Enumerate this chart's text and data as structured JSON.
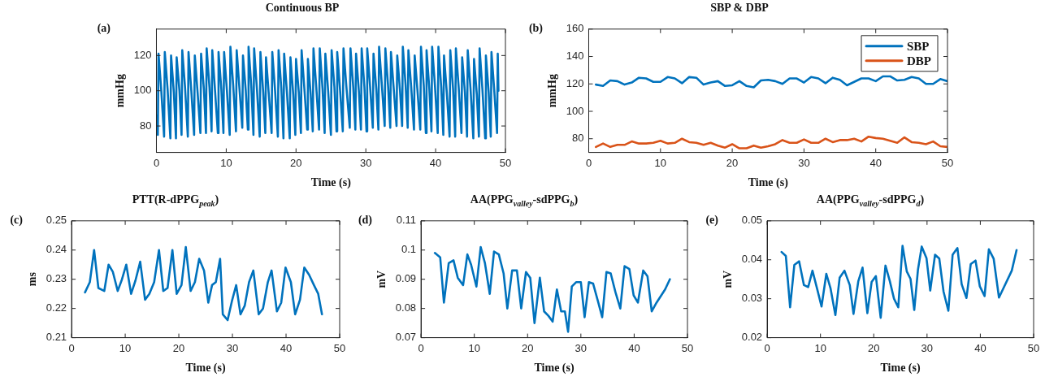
{
  "chart_data": [
    {
      "type": "line",
      "title": "Continuous BP",
      "xlabel": "Time (s)",
      "ylabel": "mmHg",
      "annotations": [
        "(a)"
      ],
      "xlim": [
        0,
        50
      ],
      "xticks": [
        0,
        10,
        20,
        30,
        40,
        50
      ],
      "ylim": [
        65,
        135
      ],
      "yticks": [
        80,
        100,
        120
      ],
      "x": [
        0,
        0.2,
        0.3,
        0.7,
        1.1,
        1.2,
        1.6,
        2.0,
        2.1,
        2.5,
        2.8,
        2.9,
        3.3,
        3.6,
        3.7,
        4.1,
        4.5,
        4.6,
        5.0,
        5.4,
        5.5,
        5.9,
        6.3,
        6.4,
        6.8,
        7.1,
        7.2,
        7.6,
        7.9,
        8.0,
        8.4,
        8.8,
        8.9,
        9.3,
        9.6,
        9.7,
        10.1,
        10.5,
        10.6,
        11.0,
        11.4,
        11.5,
        11.9,
        12.3,
        12.4,
        12.8,
        13.1,
        13.2,
        13.6,
        13.9,
        14.0,
        14.4,
        14.8,
        14.9,
        15.3,
        15.6,
        15.7,
        16.1,
        16.5,
        16.6,
        17.0,
        17.4,
        17.5,
        17.9,
        18.2,
        18.3,
        18.7,
        19.1,
        19.2,
        19.6,
        19.9,
        20.0,
        20.4,
        20.7,
        20.8,
        21.2,
        21.6,
        21.7,
        22.1,
        22.4,
        22.5,
        22.9,
        23.3,
        23.4,
        23.8,
        24.1,
        24.2,
        24.6,
        25.0,
        25.1,
        25.5,
        25.8,
        25.9,
        26.3,
        26.7,
        26.8,
        27.2,
        27.7,
        27.8,
        28.2,
        28.5,
        28.6,
        29.0,
        29.3,
        29.4,
        29.8,
        30.1,
        30.2,
        30.6,
        31.0,
        31.1,
        31.5,
        31.8,
        31.9,
        32.3,
        32.7,
        32.8,
        33.2,
        33.5,
        33.6,
        34.0,
        34.4,
        34.5,
        34.9,
        35.2,
        35.3,
        35.7,
        36.0,
        36.1,
        36.5,
        36.9,
        37.0,
        37.4,
        37.8,
        37.9,
        38.3,
        38.6,
        38.7,
        39.1,
        39.4,
        39.5,
        39.9,
        40.3,
        40.4,
        40.8,
        41.1,
        41.2,
        41.6,
        42.0,
        42.1,
        42.5,
        42.8,
        42.9,
        43.3,
        43.7,
        43.8,
        44.2,
        44.5,
        44.6,
        45.0,
        45.4,
        45.5,
        45.9,
        46.2,
        46.3,
        46.7,
        47.1,
        47.2,
        47.6,
        47.9,
        48.0,
        48.4,
        48.8,
        48.9,
        49.0
      ],
      "series": [
        {
          "color": "#0072bd",
          "values": [
            86,
            75,
            121,
            100,
            74,
            122,
            101,
            73,
            120,
            99,
            73,
            119,
            100,
            75,
            123,
            102,
            74,
            122,
            100,
            75,
            120,
            99,
            76,
            121,
            101,
            76,
            124,
            102,
            77,
            123,
            100,
            76,
            122,
            101,
            76,
            122,
            100,
            75,
            125,
            103,
            77,
            123,
            101,
            79,
            120,
            100,
            78,
            125,
            102,
            75,
            124,
            101,
            74,
            122,
            99,
            76,
            119,
            98,
            76,
            122,
            100,
            74,
            123,
            101,
            73,
            121,
            99,
            73,
            119,
            98,
            75,
            118,
            99,
            76,
            123,
            101,
            78,
            118,
            98,
            77,
            124,
            102,
            78,
            124,
            101,
            76,
            121,
            100,
            75,
            123,
            102,
            77,
            122,
            101,
            77,
            124,
            103,
            79,
            124,
            102,
            78,
            121,
            100,
            78,
            124,
            102,
            77,
            124,
            103,
            79,
            121,
            101,
            78,
            125,
            103,
            80,
            124,
            102,
            79,
            122,
            101,
            80,
            120,
            100,
            80,
            125,
            103,
            79,
            123,
            102,
            78,
            120,
            100,
            78,
            125,
            103,
            76,
            123,
            101,
            77,
            125,
            103,
            76,
            125,
            102,
            75,
            120,
            99,
            74,
            123,
            101,
            74,
            124,
            102,
            76,
            119,
            99,
            74,
            123,
            101,
            73,
            118,
            98,
            74,
            124,
            101,
            73,
            120,
            99,
            74,
            122,
            100,
            76,
            121,
            100
          ]
        }
      ]
    },
    {
      "type": "line",
      "title": "SBP & DBP",
      "xlabel": "Time (s)",
      "ylabel": "mmHg",
      "annotations": [
        "(b)"
      ],
      "xlim": [
        0,
        50
      ],
      "xticks": [
        0,
        10,
        20,
        30,
        40,
        50
      ],
      "ylim": [
        70,
        160
      ],
      "yticks": [
        80,
        100,
        120,
        140,
        160
      ],
      "legend": "top right",
      "x": [
        1,
        2,
        3,
        4,
        5,
        6,
        7,
        8,
        9,
        10,
        11,
        12,
        13,
        14,
        15,
        16,
        17,
        18,
        19,
        20,
        21,
        22,
        23,
        24,
        25,
        26,
        27,
        28,
        29,
        30,
        31,
        32,
        33,
        34,
        35,
        36,
        37,
        38,
        39,
        40,
        41,
        42,
        43,
        44,
        45,
        46,
        47,
        48,
        49,
        50
      ],
      "series": [
        {
          "name": "SBP",
          "color": "#0072bd",
          "values": [
            119.5,
            118.5,
            122.5,
            122,
            119.5,
            121,
            124.5,
            124,
            121.5,
            121.5,
            125,
            124,
            120.5,
            125,
            124.5,
            119.5,
            121,
            122,
            118.5,
            119,
            122,
            118.5,
            117.5,
            122.5,
            123,
            122,
            120,
            124,
            124,
            121,
            125,
            124,
            120.5,
            124.5,
            123,
            119,
            121.5,
            124,
            124,
            122,
            125.5,
            125.5,
            122.5,
            123,
            125,
            124,
            120,
            120,
            123.5,
            122
          ]
        },
        {
          "name": "DBP",
          "color": "#d95319",
          "values": [
            74,
            76.5,
            74,
            75.5,
            75.5,
            78,
            76.5,
            76.5,
            77,
            78.5,
            76.5,
            77,
            80,
            77.5,
            77,
            75.5,
            77,
            75,
            73.5,
            76,
            73,
            73,
            75,
            73.5,
            74.5,
            76,
            79,
            77,
            77,
            79.5,
            77,
            77,
            80,
            77.5,
            79,
            79,
            80,
            78,
            81.5,
            80.5,
            80,
            78.5,
            77,
            81,
            77.5,
            77,
            76,
            78,
            74.5,
            74
          ]
        }
      ]
    },
    {
      "type": "line",
      "title": "PTT(R-dPPG$_{peak}$)",
      "xlabel": "Time (s)",
      "ylabel": "ms",
      "annotations": [
        "(c)"
      ],
      "xlim": [
        0,
        50
      ],
      "xticks": [
        0,
        10,
        20,
        30,
        40,
        50
      ],
      "ylim": [
        0.21,
        0.25
      ],
      "yticks": [
        0.21,
        0.22,
        0.23,
        0.24,
        0.25
      ],
      "x": [
        2.5,
        3.4,
        4.2,
        5.0,
        6.1,
        6.9,
        7.7,
        8.6,
        9.4,
        10.2,
        11.1,
        11.9,
        12.8,
        13.7,
        14.5,
        15.4,
        16.3,
        17.1,
        17.9,
        18.8,
        19.6,
        20.5,
        21.3,
        22.2,
        23.0,
        23.8,
        24.7,
        25.5,
        26.2,
        26.9,
        27.7,
        28.2,
        29.1,
        29.9,
        30.7,
        31.5,
        32.3,
        33.1,
        33.9,
        34.9,
        35.7,
        36.6,
        37.3,
        38.3,
        39.1,
        39.9,
        40.9,
        41.7,
        42.6,
        43.4,
        44.3,
        45.2,
        46.0,
        46.7
      ],
      "series": [
        {
          "color": "#0072bd",
          "values": [
            0.2255,
            0.229,
            0.24,
            0.227,
            0.226,
            0.235,
            0.2325,
            0.226,
            0.23,
            0.235,
            0.225,
            0.2295,
            0.236,
            0.223,
            0.225,
            0.229,
            0.24,
            0.226,
            0.227,
            0.24,
            0.225,
            0.228,
            0.241,
            0.226,
            0.229,
            0.237,
            0.233,
            0.222,
            0.228,
            0.229,
            0.237,
            0.218,
            0.216,
            0.2225,
            0.228,
            0.218,
            0.221,
            0.229,
            0.233,
            0.218,
            0.22,
            0.229,
            0.233,
            0.219,
            0.222,
            0.234,
            0.229,
            0.218,
            0.223,
            0.234,
            0.2315,
            0.228,
            0.225,
            0.218
          ]
        }
      ]
    },
    {
      "type": "line",
      "title": "AA(PPG$_{valley}$-sdPPG$_{b}$)",
      "xlabel": "Time (s)",
      "ylabel": "mV",
      "annotations": [
        "(d)"
      ],
      "xlim": [
        0,
        50
      ],
      "xticks": [
        0,
        10,
        20,
        30,
        40,
        50
      ],
      "ylim": [
        0.07,
        0.11
      ],
      "yticks": [
        0.07,
        0.08,
        0.09,
        0.1,
        0.11
      ],
      "x": [
        2.6,
        3.6,
        4.3,
        5.2,
        6.1,
        6.9,
        7.9,
        8.7,
        9.4,
        10.4,
        11.2,
        12.0,
        12.9,
        13.7,
        14.6,
        15.5,
        16.2,
        17.1,
        18.0,
        18.8,
        19.7,
        20.5,
        21.3,
        22.3,
        23.1,
        23.9,
        24.7,
        25.5,
        26.3,
        27.0,
        27.6,
        28.3,
        29.1,
        30.0,
        30.7,
        31.5,
        32.3,
        33.2,
        34.0,
        34.8,
        35.6,
        36.5,
        37.4,
        38.2,
        39.1,
        39.9,
        40.7,
        41.7,
        42.5,
        43.3,
        44.2,
        45.8,
        46.7
      ],
      "series": [
        {
          "color": "#0072bd",
          "values": [
            0.099,
            0.0975,
            0.082,
            0.0955,
            0.0965,
            0.0905,
            0.088,
            0.0985,
            0.095,
            0.0875,
            0.101,
            0.0955,
            0.085,
            0.0995,
            0.0985,
            0.092,
            0.08,
            0.093,
            0.093,
            0.08,
            0.0925,
            0.0905,
            0.075,
            0.0905,
            0.079,
            0.0775,
            0.0755,
            0.0865,
            0.079,
            0.079,
            0.072,
            0.0875,
            0.089,
            0.089,
            0.077,
            0.089,
            0.0885,
            0.0825,
            0.077,
            0.0925,
            0.092,
            0.0855,
            0.08,
            0.0945,
            0.0935,
            0.0845,
            0.082,
            0.093,
            0.091,
            0.079,
            0.082,
            0.0865,
            0.09
          ]
        }
      ]
    },
    {
      "type": "line",
      "title": "AA(PPG$_{valley}$-sdPPG$_{d}$)",
      "xlabel": "Time (s)",
      "ylabel": "mV",
      "annotations": [
        "(e)"
      ],
      "xlim": [
        0,
        50
      ],
      "xticks": [
        0,
        10,
        20,
        30,
        40,
        50
      ],
      "ylim": [
        0.02,
        0.05
      ],
      "yticks": [
        0.02,
        0.03,
        0.04,
        0.05
      ],
      "x": [
        2.7,
        3.5,
        4.3,
        5.1,
        6.0,
        6.9,
        7.7,
        8.5,
        9.4,
        10.2,
        11.1,
        11.9,
        12.8,
        13.6,
        14.5,
        15.5,
        16.2,
        17.1,
        17.9,
        18.8,
        19.6,
        20.4,
        21.3,
        22.2,
        23.0,
        23.8,
        24.6,
        25.4,
        26.2,
        26.9,
        27.6,
        28.3,
        29.0,
        29.9,
        30.6,
        31.5,
        32.3,
        33.1,
        34.0,
        34.8,
        35.7,
        36.5,
        37.4,
        38.2,
        39.1,
        39.9,
        40.8,
        41.6,
        42.5,
        43.5,
        45.9,
        46.8
      ],
      "series": [
        {
          "color": "#0072bd",
          "values": [
            0.042,
            0.041,
            0.0278,
            0.0387,
            0.0396,
            0.0335,
            0.033,
            0.0372,
            0.0324,
            0.028,
            0.0364,
            0.0326,
            0.0258,
            0.0354,
            0.0372,
            0.0335,
            0.0261,
            0.0345,
            0.038,
            0.0263,
            0.0343,
            0.0358,
            0.0251,
            0.0385,
            0.0346,
            0.03,
            0.0278,
            0.0436,
            0.037,
            0.0351,
            0.0271,
            0.0375,
            0.0434,
            0.0404,
            0.0321,
            0.0413,
            0.0403,
            0.0318,
            0.0269,
            0.0413,
            0.043,
            0.0337,
            0.0302,
            0.0389,
            0.0398,
            0.0332,
            0.0307,
            0.0427,
            0.0403,
            0.0303,
            0.0372,
            0.0425
          ]
        }
      ]
    }
  ]
}
